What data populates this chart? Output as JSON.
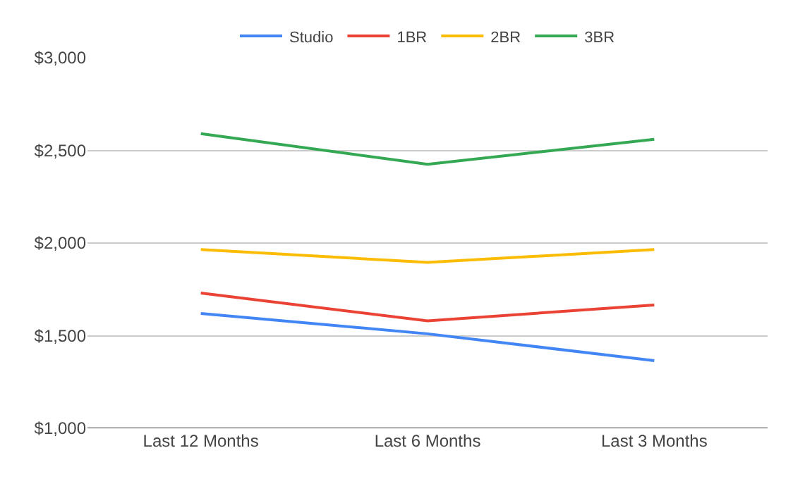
{
  "chart_data": {
    "type": "line",
    "categories": [
      "Last 12 Months",
      "Last 6 Months",
      "Last 3 Months"
    ],
    "series": [
      {
        "name": "Studio",
        "color": "#4285f4",
        "values": [
          1620,
          1510,
          1365
        ]
      },
      {
        "name": "1BR",
        "color": "#ea4335",
        "values": [
          1730,
          1580,
          1665
        ]
      },
      {
        "name": "2BR",
        "color": "#fbbc04",
        "values": [
          1965,
          1895,
          1965
        ]
      },
      {
        "name": "3BR",
        "color": "#34a853",
        "values": [
          2590,
          2425,
          2560
        ]
      }
    ],
    "ylim": [
      1000,
      3000
    ],
    "yticks": [
      {
        "value": 1000,
        "label": "$1,000"
      },
      {
        "value": 1500,
        "label": "$1,500"
      },
      {
        "value": 2000,
        "label": "$2,000"
      },
      {
        "value": 2500,
        "label": "$2,500"
      },
      {
        "value": 3000,
        "label": "$3,000"
      }
    ],
    "grid": "y",
    "legend": "top",
    "marker": "none",
    "line_style": "solid"
  }
}
